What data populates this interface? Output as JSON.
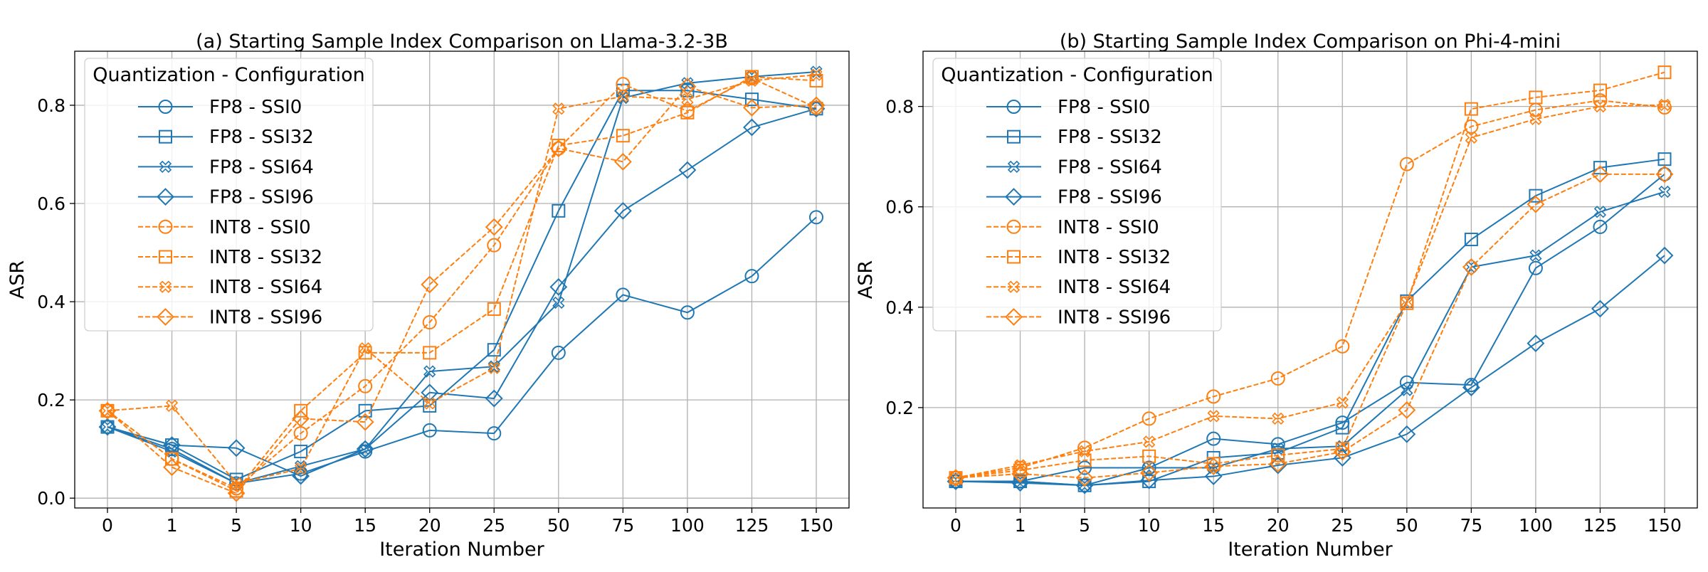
{
  "chart_data": [
    {
      "type": "line",
      "title": "(a) Starting Sample Index Comparison on Llama-3.2-3B",
      "xlabel": "Iteration Number",
      "ylabel": "ASR",
      "categories": [
        "0",
        "1",
        "5",
        "10",
        "15",
        "20",
        "25",
        "50",
        "75",
        "100",
        "125",
        "150"
      ],
      "ylim": [
        -0.02,
        0.91
      ],
      "yticks": [
        "0.0",
        "0.2",
        "0.4",
        "0.6",
        "0.8"
      ],
      "grid": true,
      "legend_title": "Quantization - Configuration",
      "legend_position": "top-left",
      "series": [
        {
          "name": "FP8 - SSI0",
          "color": "#1f77b4",
          "marker": "circle",
          "dashed": false,
          "values": [
            0.145,
            0.1,
            0.03,
            0.05,
            0.095,
            0.138,
            0.132,
            0.296,
            0.414,
            0.378,
            0.452,
            0.572
          ]
        },
        {
          "name": "FP8 - SSI32",
          "color": "#1f77b4",
          "marker": "square",
          "dashed": false,
          "values": [
            0.145,
            0.108,
            0.038,
            0.095,
            0.178,
            0.188,
            0.302,
            0.585,
            0.83,
            0.83,
            0.812,
            0.793
          ]
        },
        {
          "name": "FP8 - SSI64",
          "color": "#1f77b4",
          "marker": "x",
          "dashed": false,
          "values": [
            0.145,
            0.095,
            0.03,
            0.065,
            0.1,
            0.258,
            0.268,
            0.398,
            0.815,
            0.845,
            0.858,
            0.868
          ]
        },
        {
          "name": "FP8 - SSI96",
          "color": "#1f77b4",
          "marker": "diamond",
          "dashed": false,
          "values": [
            0.145,
            0.108,
            0.102,
            0.045,
            0.1,
            0.215,
            0.203,
            0.43,
            0.585,
            0.668,
            0.755,
            0.793
          ]
        },
        {
          "name": "INT8 - SSI0",
          "color": "#ff7f0e",
          "marker": "circle",
          "dashed": true,
          "values": [
            0.178,
            0.08,
            0.02,
            0.132,
            0.228,
            0.358,
            0.515,
            0.712,
            0.843,
            0.788,
            0.855,
            0.795
          ]
        },
        {
          "name": "INT8 - SSI32",
          "color": "#ff7f0e",
          "marker": "square",
          "dashed": true,
          "values": [
            0.178,
            0.08,
            0.015,
            0.178,
            0.296,
            0.296,
            0.385,
            0.718,
            0.738,
            0.785,
            0.858,
            0.85
          ]
        },
        {
          "name": "INT8 - SSI64",
          "color": "#ff7f0e",
          "marker": "x",
          "dashed": true,
          "values": [
            0.178,
            0.188,
            0.03,
            0.06,
            0.305,
            0.193,
            0.265,
            0.793,
            0.818,
            0.812,
            0.85,
            0.862
          ]
        },
        {
          "name": "INT8 - SSI96",
          "color": "#ff7f0e",
          "marker": "diamond",
          "dashed": true,
          "values": [
            0.178,
            0.063,
            0.01,
            0.162,
            0.155,
            0.435,
            0.552,
            0.712,
            0.685,
            0.838,
            0.795,
            0.8
          ]
        }
      ]
    },
    {
      "type": "line",
      "title": "(b) Starting Sample Index Comparison on Phi-4-mini",
      "xlabel": "Iteration Number",
      "ylabel": "ASR",
      "categories": [
        "0",
        "1",
        "5",
        "10",
        "15",
        "20",
        "25",
        "50",
        "75",
        "100",
        "125",
        "150"
      ],
      "ylim": [
        0.0,
        0.91
      ],
      "yticks": [
        "0.2",
        "0.4",
        "0.6",
        "0.8"
      ],
      "grid": true,
      "legend_title": "Quantization - Configuration",
      "legend_position": "top-left",
      "series": [
        {
          "name": "FP8 - SSI0",
          "color": "#1f77b4",
          "marker": "circle",
          "dashed": false,
          "values": [
            0.053,
            0.053,
            0.08,
            0.08,
            0.138,
            0.127,
            0.17,
            0.25,
            0.245,
            0.478,
            0.56,
            0.665
          ]
        },
        {
          "name": "FP8 - SSI32",
          "color": "#1f77b4",
          "marker": "square",
          "dashed": false,
          "values": [
            0.053,
            0.053,
            0.045,
            0.053,
            0.1,
            0.11,
            0.16,
            0.412,
            0.535,
            0.622,
            0.678,
            0.695
          ]
        },
        {
          "name": "FP8 - SSI64",
          "color": "#1f77b4",
          "marker": "x",
          "dashed": false,
          "values": [
            0.053,
            0.053,
            0.045,
            0.08,
            0.08,
            0.118,
            0.123,
            0.235,
            0.48,
            0.503,
            0.59,
            0.63
          ]
        },
        {
          "name": "FP8 - SSI96",
          "color": "#1f77b4",
          "marker": "diamond",
          "dashed": false,
          "values": [
            0.053,
            0.05,
            0.045,
            0.055,
            0.063,
            0.085,
            0.1,
            0.147,
            0.24,
            0.328,
            0.397,
            0.503
          ]
        },
        {
          "name": "INT8 - SSI0",
          "color": "#ff7f0e",
          "marker": "circle",
          "dashed": true,
          "values": [
            0.06,
            0.08,
            0.12,
            0.178,
            0.222,
            0.258,
            0.322,
            0.685,
            0.76,
            0.793,
            0.812,
            0.798
          ]
        },
        {
          "name": "INT8 - SSI32",
          "color": "#ff7f0e",
          "marker": "square",
          "dashed": true,
          "values": [
            0.06,
            0.075,
            0.095,
            0.103,
            0.088,
            0.105,
            0.118,
            0.408,
            0.795,
            0.818,
            0.832,
            0.868
          ]
        },
        {
          "name": "INT8 - SSI64",
          "color": "#ff7f0e",
          "marker": "x",
          "dashed": true,
          "values": [
            0.06,
            0.085,
            0.113,
            0.132,
            0.183,
            0.178,
            0.21,
            0.41,
            0.738,
            0.775,
            0.8,
            0.803
          ]
        },
        {
          "name": "INT8 - SSI96",
          "color": "#ff7f0e",
          "marker": "diamond",
          "dashed": true,
          "values": [
            0.06,
            0.068,
            0.06,
            0.07,
            0.083,
            0.088,
            0.112,
            0.195,
            0.48,
            0.605,
            0.665,
            0.665
          ]
        }
      ]
    }
  ]
}
